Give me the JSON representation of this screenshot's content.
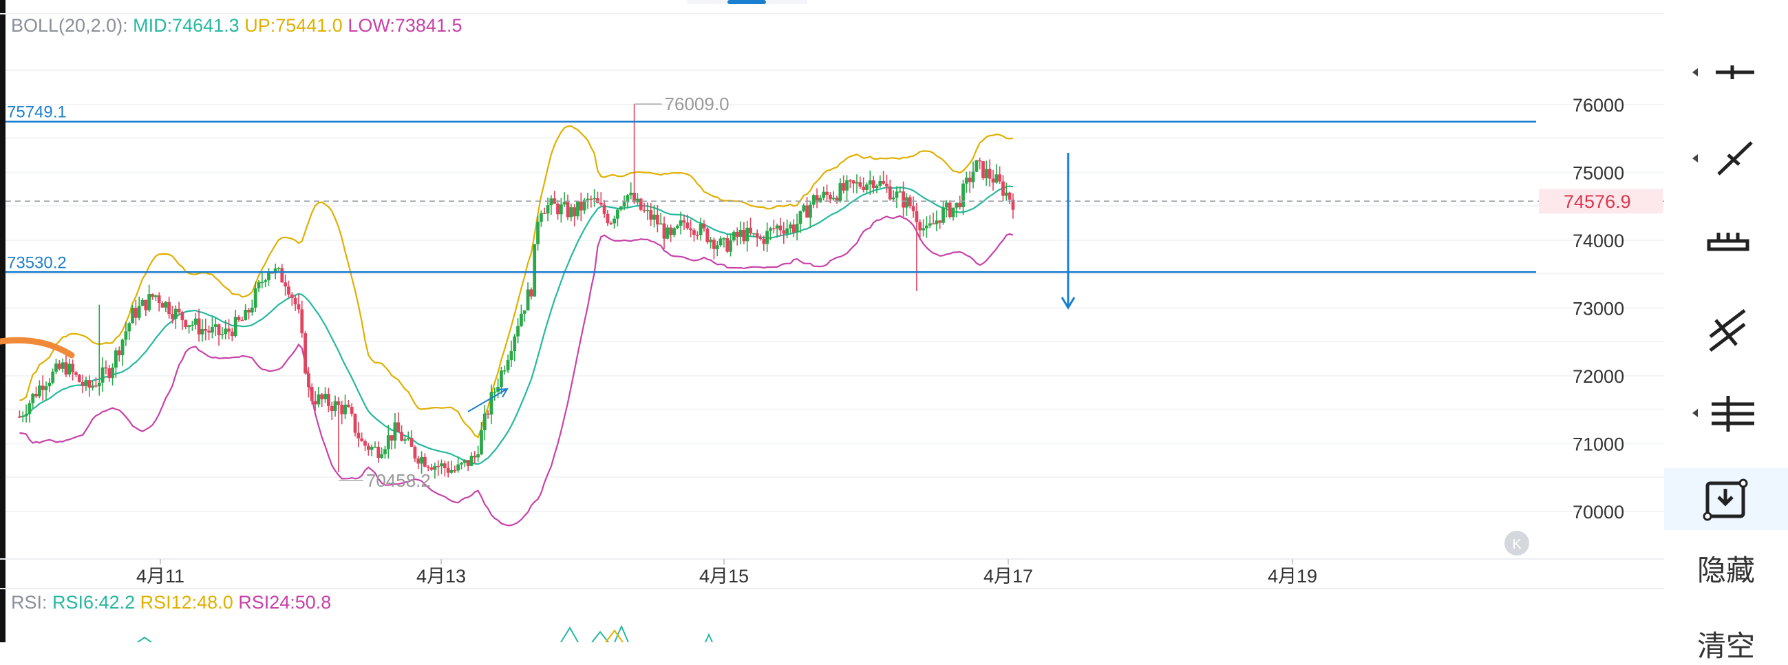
{
  "boll": {
    "label": "BOLL(20,2.0):",
    "mid": "MID:74641.3",
    "up": "UP:75441.0",
    "low": "LOW:73841.5",
    "colors": {
      "label": "#8a8f98",
      "mid": "#26b8a0",
      "up": "#e0b000",
      "low": "#c842a8"
    }
  },
  "rsi": {
    "label": "RSI:",
    "rsi6": "RSI6:42.2",
    "rsi12": "RSI12:48.0",
    "rsi24": "RSI24:50.8"
  },
  "hlines": [
    {
      "value": 75749.1,
      "label": "75749.1"
    },
    {
      "value": 73530.2,
      "label": "73530.2"
    }
  ],
  "price_tag": "74576.9",
  "annotations": {
    "high": "76009.0",
    "low": "70458.2"
  },
  "toolbar": {
    "hide_label": "隐藏",
    "clear_label": "清空"
  },
  "watermark": "K",
  "chart_data": {
    "type": "candlestick",
    "y_ticks": [
      "76000",
      "75000",
      "74000",
      "73000",
      "72000",
      "71000",
      "70000"
    ],
    "x_ticks": [
      "4月11",
      "4月13",
      "4月15",
      "4月17",
      "4月19"
    ],
    "ylim": [
      69300,
      76600
    ],
    "last_price": 74576.9,
    "period_high": 76009.0,
    "period_low": 70458.2,
    "boll_mid": 74641.3,
    "boll_up": 75441.0,
    "boll_low": 73841.5,
    "rsi6": 42.2,
    "rsi12": 48.0,
    "rsi24": 50.8,
    "colors": {
      "up": "#2aa84a",
      "down": "#e0455f",
      "mid": "#26b8a0",
      "upper": "#e0b000",
      "lower": "#c842a8",
      "hline": "#1a7fd0"
    }
  }
}
